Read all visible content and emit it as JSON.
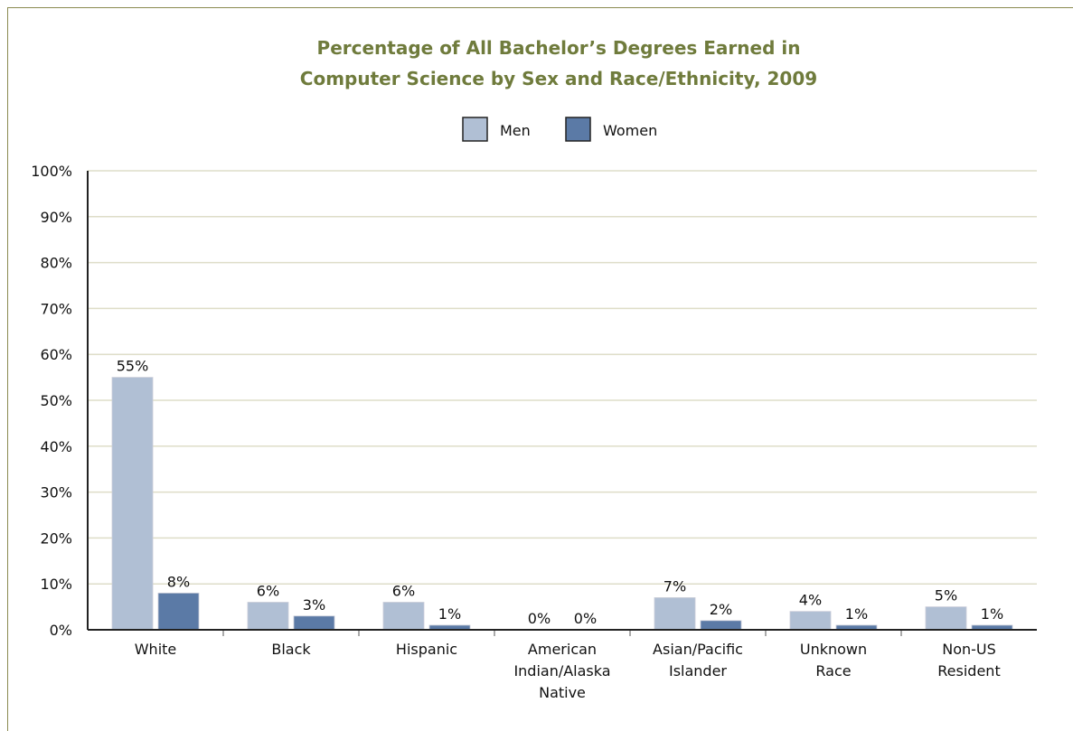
{
  "chart_data": {
    "type": "bar",
    "title": "Percentage of All Bachelor’s Degrees Earned in Computer Science by Sex and Race/Ethnicity, 2009",
    "categories": [
      "White",
      "Black",
      "Hispanic",
      "American Indian/Alaska Native",
      "Asian/Pacific Islander",
      "Unknown Race",
      "Non-US Resident"
    ],
    "series": [
      {
        "name": "Men",
        "color": "#b0bfd4",
        "values": [
          55,
          6,
          6,
          0,
          7,
          4,
          5
        ],
        "value_labels": [
          "55%",
          "6%",
          "6%",
          "0%",
          "7%",
          "4%",
          "5%"
        ]
      },
      {
        "name": "Women",
        "color": "#5b7aa6",
        "values": [
          8,
          3,
          1,
          0,
          2,
          1,
          1
        ],
        "value_labels": [
          "8%",
          "3%",
          "1%",
          "0%",
          "2%",
          "1%",
          "1%"
        ]
      }
    ],
    "ylim": [
      0,
      100
    ],
    "yticks": [
      {
        "value": 0,
        "label": "0%"
      },
      {
        "value": 10,
        "label": "10%"
      },
      {
        "value": 20,
        "label": "20%"
      },
      {
        "value": 30,
        "label": "30%"
      },
      {
        "value": 40,
        "label": "40%"
      },
      {
        "value": 50,
        "label": "50%"
      },
      {
        "value": 60,
        "label": "60%"
      },
      {
        "value": 70,
        "label": "70%"
      },
      {
        "value": 80,
        "label": "80%"
      },
      {
        "value": 90,
        "label": "90%"
      },
      {
        "value": 100,
        "label": "100%"
      }
    ],
    "grid": true,
    "legend": "top"
  }
}
